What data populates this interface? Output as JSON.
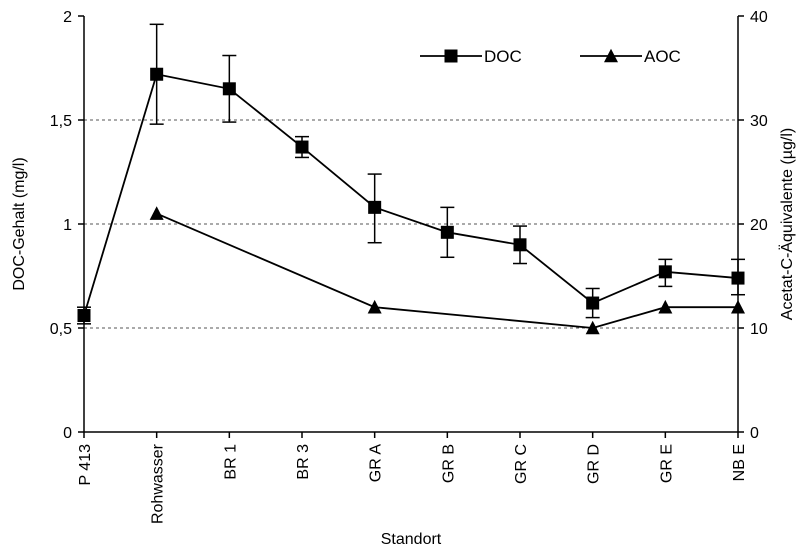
{
  "chart_data": {
    "type": "line",
    "title": "",
    "xlabel": "Standort",
    "ylabel_left": "DOC-Gehalt (mg/l)",
    "ylabel_right": "Acetat-C-Äquivalente (µg/l)",
    "categories": [
      "P 413",
      "Rohwasser",
      "BR 1",
      "BR 3",
      "GR A",
      "GR B",
      "GR C",
      "GR D",
      "GR E",
      "NB E"
    ],
    "y_left": {
      "min": 0,
      "max": 2,
      "ticks": [
        0,
        0.5,
        1,
        1.5,
        2
      ],
      "tick_labels": [
        "0",
        "0,5",
        "1",
        "1,5",
        "2"
      ]
    },
    "y_right": {
      "min": 0,
      "max": 40,
      "ticks": [
        0,
        10,
        20,
        30,
        40
      ],
      "tick_labels": [
        "0",
        "10",
        "20",
        "30",
        "40"
      ]
    },
    "gridlines": {
      "axis": "left",
      "values": [
        0.5,
        1,
        1.5
      ],
      "style": "dashed"
    },
    "legend_position": "top-right",
    "series": [
      {
        "name": "DOC",
        "axis": "left",
        "marker": "square",
        "color": "#000000",
        "values": [
          0.56,
          1.72,
          1.65,
          1.37,
          1.08,
          0.96,
          0.9,
          0.62,
          0.77,
          0.74
        ],
        "error_low": [
          0.52,
          1.48,
          1.49,
          1.32,
          0.91,
          0.84,
          0.81,
          0.55,
          0.7,
          0.66
        ],
        "error_high": [
          0.6,
          1.96,
          1.81,
          1.42,
          1.24,
          1.08,
          0.99,
          0.69,
          0.83,
          0.83
        ]
      },
      {
        "name": "AOC",
        "axis": "right",
        "marker": "triangle",
        "color": "#000000",
        "values": [
          null,
          21,
          null,
          null,
          12,
          null,
          null,
          10,
          12,
          12
        ]
      }
    ]
  }
}
